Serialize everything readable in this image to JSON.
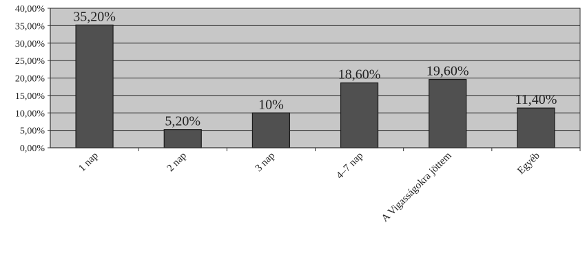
{
  "chart_data": {
    "type": "bar",
    "categories": [
      "1 nap",
      "2 nap",
      "3 nap",
      "4–7 nap",
      "A Vigasságokra jöttem",
      "Egyéb"
    ],
    "values": [
      35.2,
      5.2,
      10,
      18.6,
      19.6,
      11.4
    ],
    "data_labels": [
      "35,20%",
      "5,20%",
      "10%",
      "18,60%",
      "19,60%",
      "11,40%"
    ],
    "y_ticks": [
      {
        "value": 0,
        "label": "0,00%"
      },
      {
        "value": 5,
        "label": "5,00%"
      },
      {
        "value": 10,
        "label": "10,00%"
      },
      {
        "value": 15,
        "label": "15,00%"
      },
      {
        "value": 20,
        "label": "20,00%"
      },
      {
        "value": 25,
        "label": "25,00%"
      },
      {
        "value": 30,
        "label": "30,00%"
      },
      {
        "value": 35,
        "label": "35,00%"
      },
      {
        "value": 40,
        "label": "40,00%"
      }
    ],
    "ylim": [
      0,
      40
    ],
    "title": "",
    "xlabel": "",
    "ylabel": "",
    "grid": true,
    "legend": "none",
    "colors": {
      "plot_background": "#c7c7c7",
      "bar_fill": "#505050",
      "bar_stroke": "#1a1a1a",
      "gridline": "#222222",
      "axis": "#333333"
    }
  }
}
